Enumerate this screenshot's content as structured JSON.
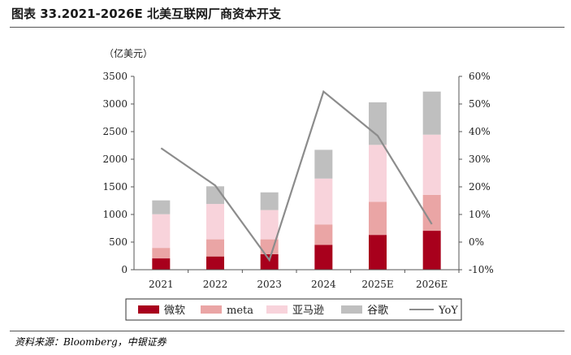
{
  "title": "图表 33.2021-2026E 北美互联网厂商资本开支",
  "source": "资料来源：Bloomberg，中银证券",
  "colors": {
    "microsoft": "#A8001C",
    "meta": "#EAA5A5",
    "amazon": "#F8D3DB",
    "google": "#BFBFBF",
    "yoy": "#8C8C8C"
  },
  "chart_data": {
    "type": "bar",
    "stacked": true,
    "unit_label": "（亿美元）",
    "categories": [
      "2021",
      "2022",
      "2023",
      "2024",
      "2025E",
      "2026E"
    ],
    "series": [
      {
        "name": "微软",
        "values": [
          205,
          240,
          280,
          450,
          630,
          705
        ]
      },
      {
        "name": "meta",
        "values": [
          190,
          310,
          270,
          370,
          600,
          650
        ]
      },
      {
        "name": "亚马逊",
        "values": [
          610,
          640,
          530,
          830,
          1030,
          1090
        ]
      },
      {
        "name": "谷歌",
        "values": [
          250,
          320,
          320,
          520,
          770,
          780
        ]
      }
    ],
    "line_series": {
      "name": "YoY",
      "axis": "right",
      "values": [
        34.0,
        20.5,
        -6.5,
        54.5,
        38.5,
        6.5
      ]
    },
    "ylim": [
      0,
      3500
    ],
    "yticks": [
      "0",
      "500",
      "1000",
      "1500",
      "2000",
      "2500",
      "3000",
      "3500"
    ],
    "y2lim": [
      -10,
      60
    ],
    "y2ticks": [
      "-10%",
      "0%",
      "10%",
      "20%",
      "30%",
      "40%",
      "50%",
      "60%"
    ],
    "legend": [
      "微软",
      "meta",
      "亚马逊",
      "谷歌",
      "YoY"
    ],
    "legend_position": "bottom"
  }
}
